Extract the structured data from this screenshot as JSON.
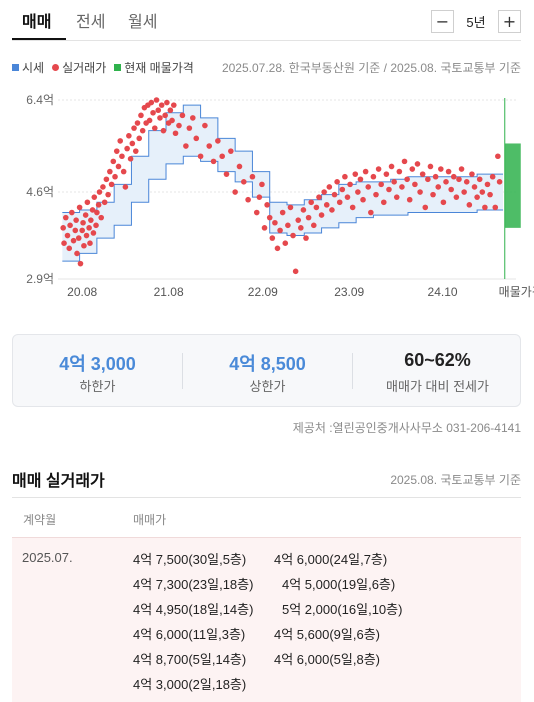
{
  "tabs": [
    {
      "label": "매매",
      "active": true
    },
    {
      "label": "전세",
      "active": false
    },
    {
      "label": "월세",
      "active": false
    }
  ],
  "period": {
    "minus_label": "−",
    "value": "5년",
    "plus_label": "+"
  },
  "legend": [
    {
      "label": "시세",
      "color": "#4a86d8",
      "shape": "square"
    },
    {
      "label": "실거래가",
      "color": "#e5484d",
      "shape": "dot"
    },
    {
      "label": "현재 매물가격",
      "color": "#2fb24c",
      "shape": "square"
    }
  ],
  "chart_source": "2025.07.28. 한국부동산원 기준 / 2025.08. 국토교통부 기준",
  "chart_data": {
    "type": "scatter",
    "y_ticks": [
      "6.4억",
      "4.6억",
      "2.9억"
    ],
    "y_tick_values": [
      6.4,
      4.6,
      2.9
    ],
    "ylim": [
      2.9,
      6.4
    ],
    "x_ticks": [
      "20.08",
      "21.08",
      "22.09",
      "23.09",
      "24.10",
      "매물가격"
    ],
    "x_tick_values": [
      2020.58,
      2021.58,
      2022.67,
      2023.67,
      2024.75
    ],
    "xlim": [
      2020.3,
      2025.6
    ],
    "grid": true,
    "colors": {
      "market": "#4a86d8",
      "band": "#e6f0fa",
      "trade": "#e5484d",
      "listing": "#2fb24c"
    },
    "market_band": {
      "x": [
        2020.35,
        2020.55,
        2020.75,
        2020.95,
        2021.15,
        2021.35,
        2021.55,
        2021.75,
        2021.95,
        2022.15,
        2022.35,
        2022.55,
        2022.75,
        2022.95,
        2023.15,
        2023.35,
        2023.55,
        2023.75,
        2023.95,
        2024.15,
        2024.35,
        2024.55,
        2024.75,
        2024.95,
        2025.15,
        2025.45
      ],
      "upper": [
        4.2,
        4.25,
        4.4,
        4.75,
        5.3,
        5.8,
        6.15,
        6.3,
        6.05,
        5.65,
        5.4,
        5.0,
        4.4,
        4.35,
        4.45,
        4.55,
        4.75,
        4.8,
        4.8,
        4.85,
        4.9,
        4.9,
        4.9,
        4.9,
        4.95,
        4.95
      ],
      "lower": [
        3.25,
        3.4,
        3.7,
        3.95,
        4.4,
        4.85,
        5.15,
        5.3,
        5.2,
        5.0,
        4.8,
        4.5,
        3.8,
        3.75,
        3.8,
        3.9,
        4.0,
        4.1,
        4.15,
        4.15,
        4.2,
        4.2,
        4.2,
        4.2,
        4.25,
        4.25
      ]
    },
    "listing_range": {
      "x": 2025.47,
      "min": 3.9,
      "max": 5.55
    },
    "trade_points": [
      [
        2020.36,
        3.9
      ],
      [
        2020.37,
        3.6
      ],
      [
        2020.39,
        4.1
      ],
      [
        2020.41,
        3.75
      ],
      [
        2020.43,
        3.5
      ],
      [
        2020.44,
        3.95
      ],
      [
        2020.46,
        4.2
      ],
      [
        2020.48,
        3.65
      ],
      [
        2020.5,
        3.85
      ],
      [
        2020.51,
        4.05
      ],
      [
        2020.52,
        3.4
      ],
      [
        2020.54,
        3.7
      ],
      [
        2020.55,
        4.3
      ],
      [
        2020.56,
        3.2
      ],
      [
        2020.58,
        3.85
      ],
      [
        2020.59,
        4.0
      ],
      [
        2020.6,
        3.55
      ],
      [
        2020.62,
        4.15
      ],
      [
        2020.63,
        3.75
      ],
      [
        2020.64,
        4.4
      ],
      [
        2020.66,
        3.9
      ],
      [
        2020.67,
        3.6
      ],
      [
        2020.68,
        4.05
      ],
      [
        2020.7,
        4.25
      ],
      [
        2020.71,
        3.8
      ],
      [
        2020.72,
        4.5
      ],
      [
        2020.74,
        3.95
      ],
      [
        2020.75,
        4.2
      ],
      [
        2020.77,
        4.35
      ],
      [
        2020.78,
        4.6
      ],
      [
        2020.8,
        4.1
      ],
      [
        2020.82,
        4.7
      ],
      [
        2020.84,
        4.4
      ],
      [
        2020.86,
        4.85
      ],
      [
        2020.88,
        4.55
      ],
      [
        2020.9,
        5.0
      ],
      [
        2020.92,
        4.75
      ],
      [
        2020.94,
        5.2
      ],
      [
        2020.96,
        4.9
      ],
      [
        2020.98,
        5.4
      ],
      [
        2021.0,
        5.1
      ],
      [
        2021.02,
        5.6
      ],
      [
        2021.04,
        5.3
      ],
      [
        2021.06,
        5.0
      ],
      [
        2021.08,
        4.7
      ],
      [
        2021.1,
        5.45
      ],
      [
        2021.12,
        5.7
      ],
      [
        2021.14,
        5.25
      ],
      [
        2021.16,
        5.55
      ],
      [
        2021.18,
        5.85
      ],
      [
        2021.2,
        5.4
      ],
      [
        2021.22,
        5.95
      ],
      [
        2021.24,
        5.65
      ],
      [
        2021.26,
        6.1
      ],
      [
        2021.28,
        5.8
      ],
      [
        2021.3,
        6.25
      ],
      [
        2021.32,
        5.95
      ],
      [
        2021.34,
        6.3
      ],
      [
        2021.36,
        6.0
      ],
      [
        2021.38,
        6.35
      ],
      [
        2021.4,
        6.15
      ],
      [
        2021.42,
        5.85
      ],
      [
        2021.44,
        6.4
      ],
      [
        2021.46,
        6.2
      ],
      [
        2021.48,
        6.05
      ],
      [
        2021.5,
        6.3
      ],
      [
        2021.52,
        5.8
      ],
      [
        2021.54,
        6.1
      ],
      [
        2021.56,
        6.35
      ],
      [
        2021.58,
        5.95
      ],
      [
        2021.6,
        6.2
      ],
      [
        2021.62,
        6.0
      ],
      [
        2021.64,
        6.3
      ],
      [
        2021.66,
        5.75
      ],
      [
        2021.7,
        5.9
      ],
      [
        2021.74,
        6.1
      ],
      [
        2021.78,
        5.5
      ],
      [
        2021.82,
        5.85
      ],
      [
        2021.86,
        6.05
      ],
      [
        2021.9,
        5.65
      ],
      [
        2021.95,
        5.3
      ],
      [
        2022.0,
        5.9
      ],
      [
        2022.05,
        5.5
      ],
      [
        2022.1,
        5.2
      ],
      [
        2022.15,
        5.6
      ],
      [
        2022.2,
        5.3
      ],
      [
        2022.25,
        4.95
      ],
      [
        2022.3,
        5.4
      ],
      [
        2022.35,
        4.6
      ],
      [
        2022.4,
        5.1
      ],
      [
        2022.45,
        4.8
      ],
      [
        2022.5,
        4.45
      ],
      [
        2022.55,
        4.9
      ],
      [
        2022.6,
        4.2
      ],
      [
        2022.63,
        4.5
      ],
      [
        2022.66,
        4.75
      ],
      [
        2022.69,
        3.9
      ],
      [
        2022.72,
        4.35
      ],
      [
        2022.75,
        4.1
      ],
      [
        2022.78,
        3.7
      ],
      [
        2022.81,
        4.0
      ],
      [
        2022.84,
        3.5
      ],
      [
        2022.87,
        3.85
      ],
      [
        2022.9,
        4.2
      ],
      [
        2022.93,
        3.6
      ],
      [
        2022.96,
        3.95
      ],
      [
        2022.99,
        4.3
      ],
      [
        2023.02,
        3.75
      ],
      [
        2023.05,
        3.05
      ],
      [
        2023.08,
        4.05
      ],
      [
        2023.11,
        3.9
      ],
      [
        2023.14,
        4.25
      ],
      [
        2023.17,
        3.7
      ],
      [
        2023.2,
        4.1
      ],
      [
        2023.23,
        4.4
      ],
      [
        2023.26,
        3.95
      ],
      [
        2023.29,
        4.3
      ],
      [
        2023.32,
        4.5
      ],
      [
        2023.35,
        4.15
      ],
      [
        2023.38,
        4.6
      ],
      [
        2023.41,
        4.35
      ],
      [
        2023.44,
        4.7
      ],
      [
        2023.47,
        4.25
      ],
      [
        2023.5,
        4.55
      ],
      [
        2023.53,
        4.8
      ],
      [
        2023.56,
        4.4
      ],
      [
        2023.59,
        4.65
      ],
      [
        2023.62,
        4.9
      ],
      [
        2023.65,
        4.5
      ],
      [
        2023.68,
        4.75
      ],
      [
        2023.71,
        4.3
      ],
      [
        2023.74,
        4.95
      ],
      [
        2023.77,
        4.6
      ],
      [
        2023.8,
        4.85
      ],
      [
        2023.83,
        4.45
      ],
      [
        2023.86,
        5.0
      ],
      [
        2023.89,
        4.7
      ],
      [
        2023.92,
        4.2
      ],
      [
        2023.95,
        4.9
      ],
      [
        2023.98,
        4.55
      ],
      [
        2024.01,
        5.05
      ],
      [
        2024.04,
        4.75
      ],
      [
        2024.07,
        4.4
      ],
      [
        2024.1,
        4.95
      ],
      [
        2024.13,
        4.65
      ],
      [
        2024.16,
        5.1
      ],
      [
        2024.19,
        4.8
      ],
      [
        2024.22,
        4.5
      ],
      [
        2024.25,
        5.0
      ],
      [
        2024.28,
        4.7
      ],
      [
        2024.31,
        5.2
      ],
      [
        2024.34,
        4.85
      ],
      [
        2024.37,
        4.45
      ],
      [
        2024.4,
        5.05
      ],
      [
        2024.43,
        4.75
      ],
      [
        2024.46,
        5.15
      ],
      [
        2024.49,
        4.6
      ],
      [
        2024.52,
        4.95
      ],
      [
        2024.55,
        4.3
      ],
      [
        2024.58,
        4.85
      ],
      [
        2024.61,
        5.1
      ],
      [
        2024.64,
        4.55
      ],
      [
        2024.67,
        4.9
      ],
      [
        2024.7,
        4.7
      ],
      [
        2024.73,
        5.05
      ],
      [
        2024.76,
        4.4
      ],
      [
        2024.79,
        4.8
      ],
      [
        2024.82,
        5.0
      ],
      [
        2024.85,
        4.65
      ],
      [
        2024.88,
        4.9
      ],
      [
        2024.91,
        4.5
      ],
      [
        2024.94,
        4.85
      ],
      [
        2024.97,
        5.05
      ],
      [
        2025.0,
        4.6
      ],
      [
        2025.03,
        4.8
      ],
      [
        2025.06,
        4.35
      ],
      [
        2025.09,
        4.95
      ],
      [
        2025.12,
        4.7
      ],
      [
        2025.15,
        4.5
      ],
      [
        2025.18,
        4.85
      ],
      [
        2025.21,
        4.6
      ],
      [
        2025.24,
        4.3
      ],
      [
        2025.27,
        4.75
      ],
      [
        2025.3,
        4.55
      ],
      [
        2025.33,
        4.9
      ],
      [
        2025.36,
        4.3
      ],
      [
        2025.39,
        5.3
      ],
      [
        2025.41,
        4.8
      ]
    ]
  },
  "stats": [
    {
      "value": "4억 3,000",
      "label": "하한가",
      "tone": "blue"
    },
    {
      "value": "4억 8,500",
      "label": "상한가",
      "tone": "blue"
    },
    {
      "value": "60~62%",
      "label": "매매가 대비 전세가",
      "tone": "dark"
    }
  ],
  "provider": "제공처 :열린공인중개사사무소 031-206-4141",
  "transactions": {
    "title": "매매 실거래가",
    "source": "2025.08. 국토교통부 기준",
    "col_date": "계약월",
    "col_price": "매매가",
    "month": "2025.07.",
    "items": [
      "4억 7,500(30일,5층)",
      "4억 6,000(24일,7층)",
      "4억 7,300(23일,18층)",
      "4억 5,000(19일,6층)",
      "4억 4,950(18일,14층)",
      "5억 2,000(16일,10층)",
      "4억 6,000(11일,3층)",
      "4억 5,600(9일,6층)",
      "4억 8,700(5일,14층)",
      "4억 6,000(5일,8층)",
      "4억 3,000(2일,18층)"
    ]
  }
}
